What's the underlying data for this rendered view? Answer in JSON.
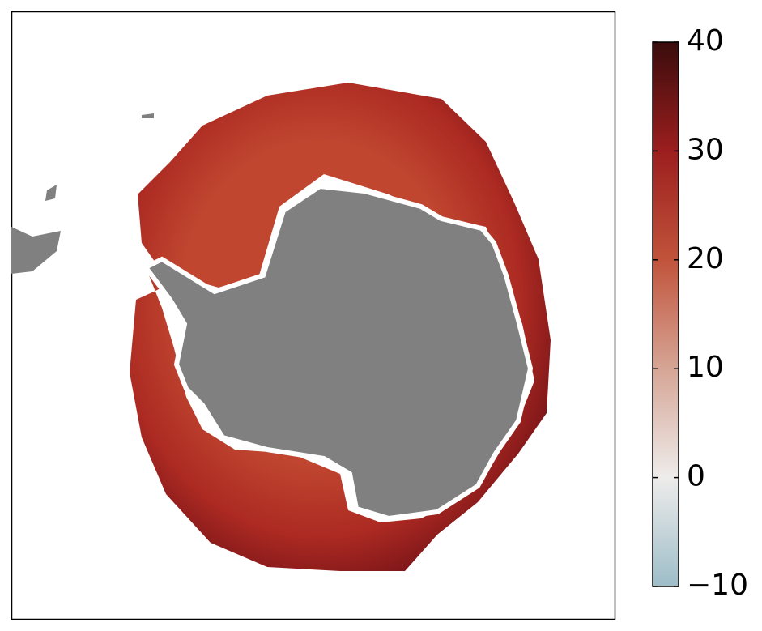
{
  "colorbar": {
    "lim": [
      -10,
      40
    ],
    "ticks": [
      {
        "value": -10,
        "label": "−10"
      },
      0,
      10,
      20,
      30,
      40
    ],
    "colors": [
      "#9dbdc8",
      "#eeeceb",
      "#d6a595",
      "#c1533b",
      "#9c1e1e",
      "#3a0c0c"
    ]
  }
}
